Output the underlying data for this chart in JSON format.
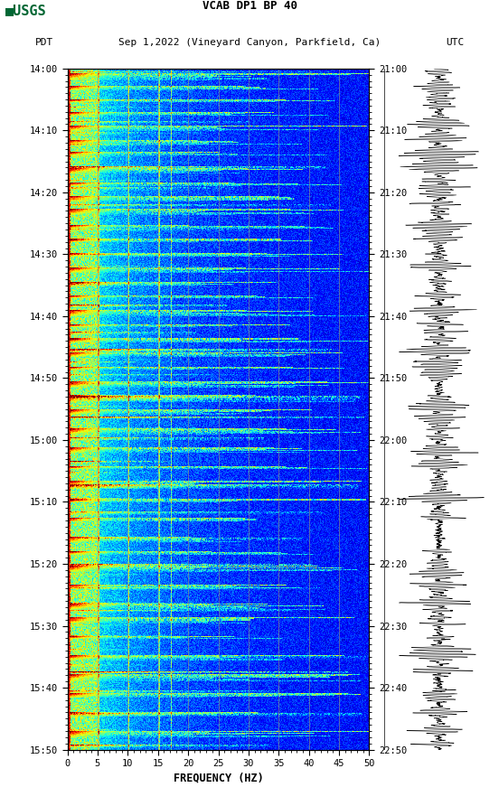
{
  "title_line1": "VCAB DP1 BP 40",
  "title_line2_left": "PDT",
  "title_line2_center": "Sep 1,2022 (Vineyard Canyon, Parkfield, Ca)",
  "title_line2_right": "UTC",
  "xlabel": "FREQUENCY (HZ)",
  "freq_min": 0,
  "freq_max": 50,
  "freq_ticks": [
    0,
    5,
    10,
    15,
    20,
    25,
    30,
    35,
    40,
    45,
    50
  ],
  "time_labels_left": [
    "14:00",
    "14:10",
    "14:20",
    "14:30",
    "14:40",
    "14:50",
    "15:00",
    "15:10",
    "15:20",
    "15:30",
    "15:40",
    "15:50"
  ],
  "time_labels_right": [
    "21:00",
    "21:10",
    "21:20",
    "21:30",
    "21:40",
    "21:50",
    "22:00",
    "22:10",
    "22:20",
    "22:30",
    "22:40",
    "22:50"
  ],
  "n_time_steps": 720,
  "n_freq_steps": 500,
  "background_color": "#ffffff",
  "colormap": "jet",
  "vline_freqs": [
    5,
    10,
    15,
    20,
    25,
    30,
    35,
    40,
    45
  ],
  "vline_color": "#999977",
  "vline_alpha": 0.7,
  "fig_width": 5.52,
  "fig_height": 8.92,
  "usgs_color": "#006633"
}
